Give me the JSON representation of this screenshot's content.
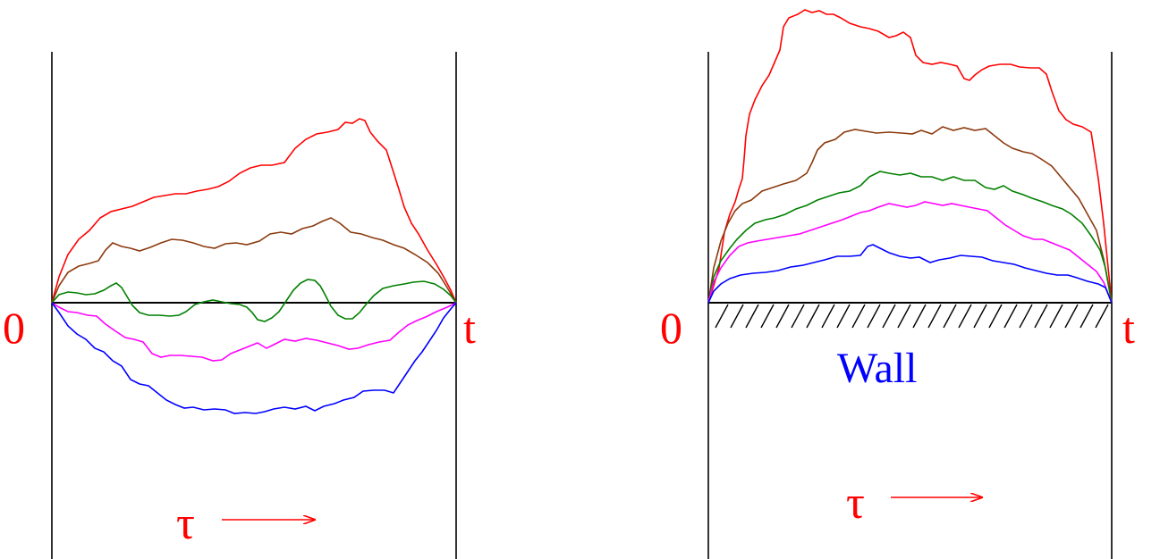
{
  "colors": {
    "frame": "#000000",
    "label": "#ff0000",
    "wall_text": "#0000ff",
    "red": "#ff0000",
    "brown": "#8b3a0e",
    "green": "#008000",
    "magenta": "#ff00ff",
    "blue": "#0000ff"
  },
  "panels": [
    {
      "id": "left",
      "start_label": "0",
      "end_label": "t",
      "axis_label": "τ",
      "has_wall": false,
      "wall_label": "",
      "paths": [
        {
          "name": "red",
          "color_key": "red",
          "shape": "positive-large"
        },
        {
          "name": "brown",
          "color_key": "brown",
          "shape": "positive-medium"
        },
        {
          "name": "green",
          "color_key": "green",
          "shape": "oscillating"
        },
        {
          "name": "magenta",
          "color_key": "magenta",
          "shape": "negative-medium"
        },
        {
          "name": "blue",
          "color_key": "blue",
          "shape": "negative-large"
        }
      ]
    },
    {
      "id": "right",
      "start_label": "0",
      "end_label": "t",
      "axis_label": "τ",
      "has_wall": true,
      "wall_label": "Wall",
      "paths": [
        {
          "name": "red",
          "color_key": "red",
          "shape": "positive-large"
        },
        {
          "name": "brown",
          "color_key": "brown",
          "shape": "positive-medium"
        },
        {
          "name": "green",
          "color_key": "green",
          "shape": "positive-small"
        },
        {
          "name": "magenta",
          "color_key": "magenta",
          "shape": "positive-smaller"
        },
        {
          "name": "blue",
          "color_key": "blue",
          "shape": "positive-smallest"
        }
      ]
    }
  ]
}
